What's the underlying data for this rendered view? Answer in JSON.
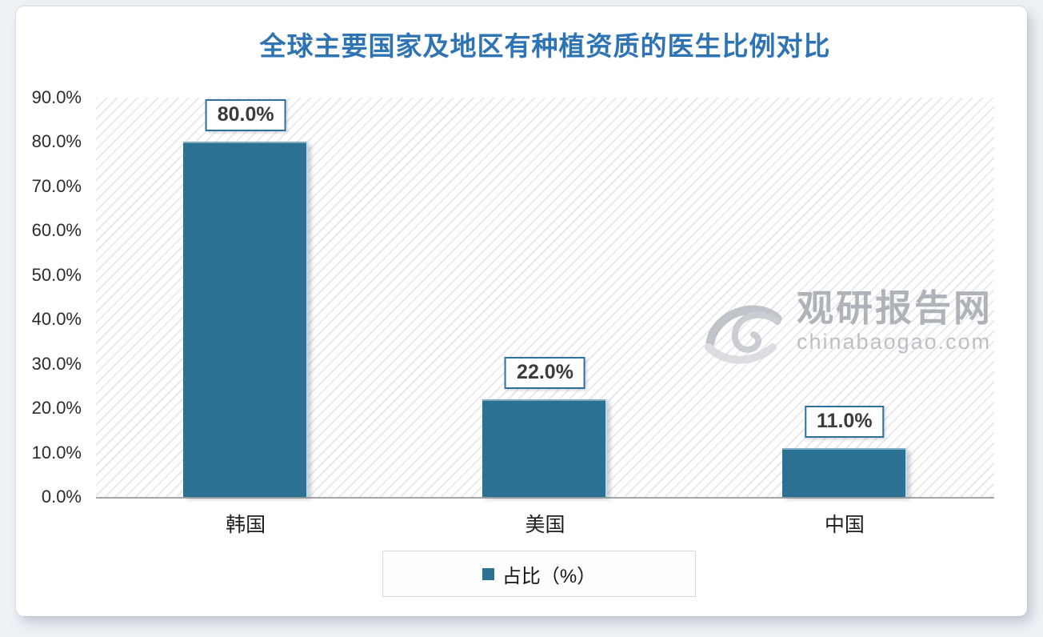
{
  "page": {
    "background": "#eef1f5",
    "card_background": "#ffffff"
  },
  "chart_data": {
    "type": "bar",
    "title": "全球主要国家及地区有种植资质的医生比例对比",
    "title_color": "#2e74b5",
    "categories": [
      "韩国",
      "美国",
      "中国"
    ],
    "series": [
      {
        "name": "占比（%）",
        "values": [
          80.0,
          22.0,
          11.0
        ]
      }
    ],
    "data_labels": [
      "80.0%",
      "22.0%",
      "11.0%"
    ],
    "xlabel": "",
    "ylabel": "",
    "ylim": [
      0,
      90
    ],
    "y_tick_step": 10,
    "y_tick_labels": [
      "90.0%",
      "80.0%",
      "70.0%",
      "60.0%",
      "50.0%",
      "40.0%",
      "30.0%",
      "20.0%",
      "10.0%",
      "0.0%"
    ],
    "grid": false,
    "plot_background": "diagonal-hatch",
    "legend_position": "bottom",
    "bar_color": "#2a7194",
    "bar_label_border_color": "#2f6f9b",
    "axis_line_color": "#a6a6a6"
  },
  "legend": {
    "label": "占比（%）"
  },
  "watermark": {
    "brand": "观研报告网",
    "domain": "chinabaogao.com",
    "logo": "swirl-logo-icon",
    "color": "#a2a7ad"
  }
}
